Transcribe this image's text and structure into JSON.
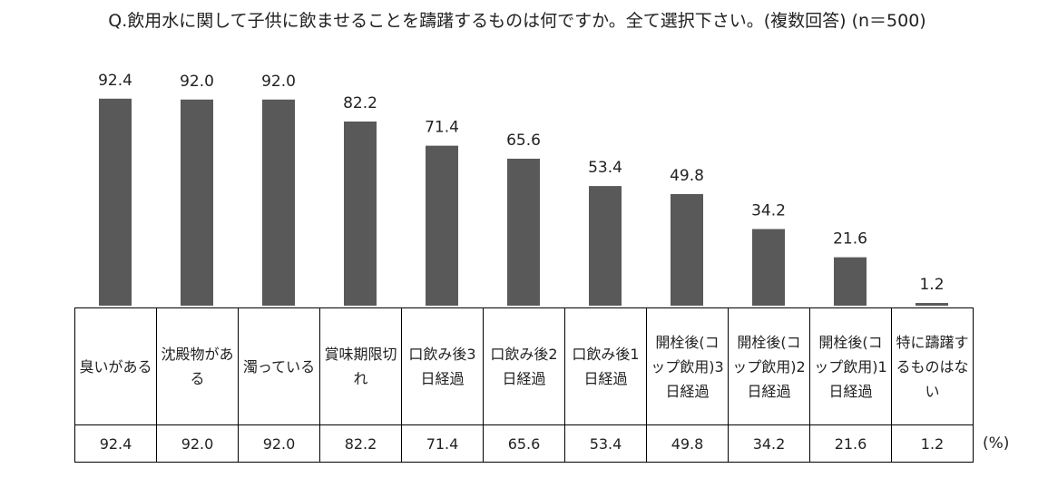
{
  "chart_data": {
    "type": "bar",
    "title": "Q.飲用水に関して子供に飲ませることを躊躇するものは何ですか。全て選択下さい。(複数回答) (n＝500)",
    "categories": [
      "臭いがある",
      "沈殿物がある",
      "濁っている",
      "賞味期限切れ",
      "口飲み後3日経過",
      "口飲み後2日経過",
      "口飲み後1日経過",
      "開栓後(コップ飲用)3日経過",
      "開栓後(コップ飲用)2日経過",
      "開栓後(コップ飲用)1日経過",
      "特に躊躇するものはない"
    ],
    "values": [
      92.4,
      92.0,
      92.0,
      82.2,
      71.4,
      65.6,
      53.4,
      49.8,
      34.2,
      21.6,
      1.2
    ],
    "value_labels": [
      "92.4",
      "92.0",
      "92.0",
      "82.2",
      "71.4",
      "65.6",
      "53.4",
      "49.8",
      "34.2",
      "21.6",
      "1.2"
    ],
    "unit": "(%)",
    "ylim": [
      0,
      100
    ],
    "grid": false,
    "bar_color": "#595959"
  }
}
